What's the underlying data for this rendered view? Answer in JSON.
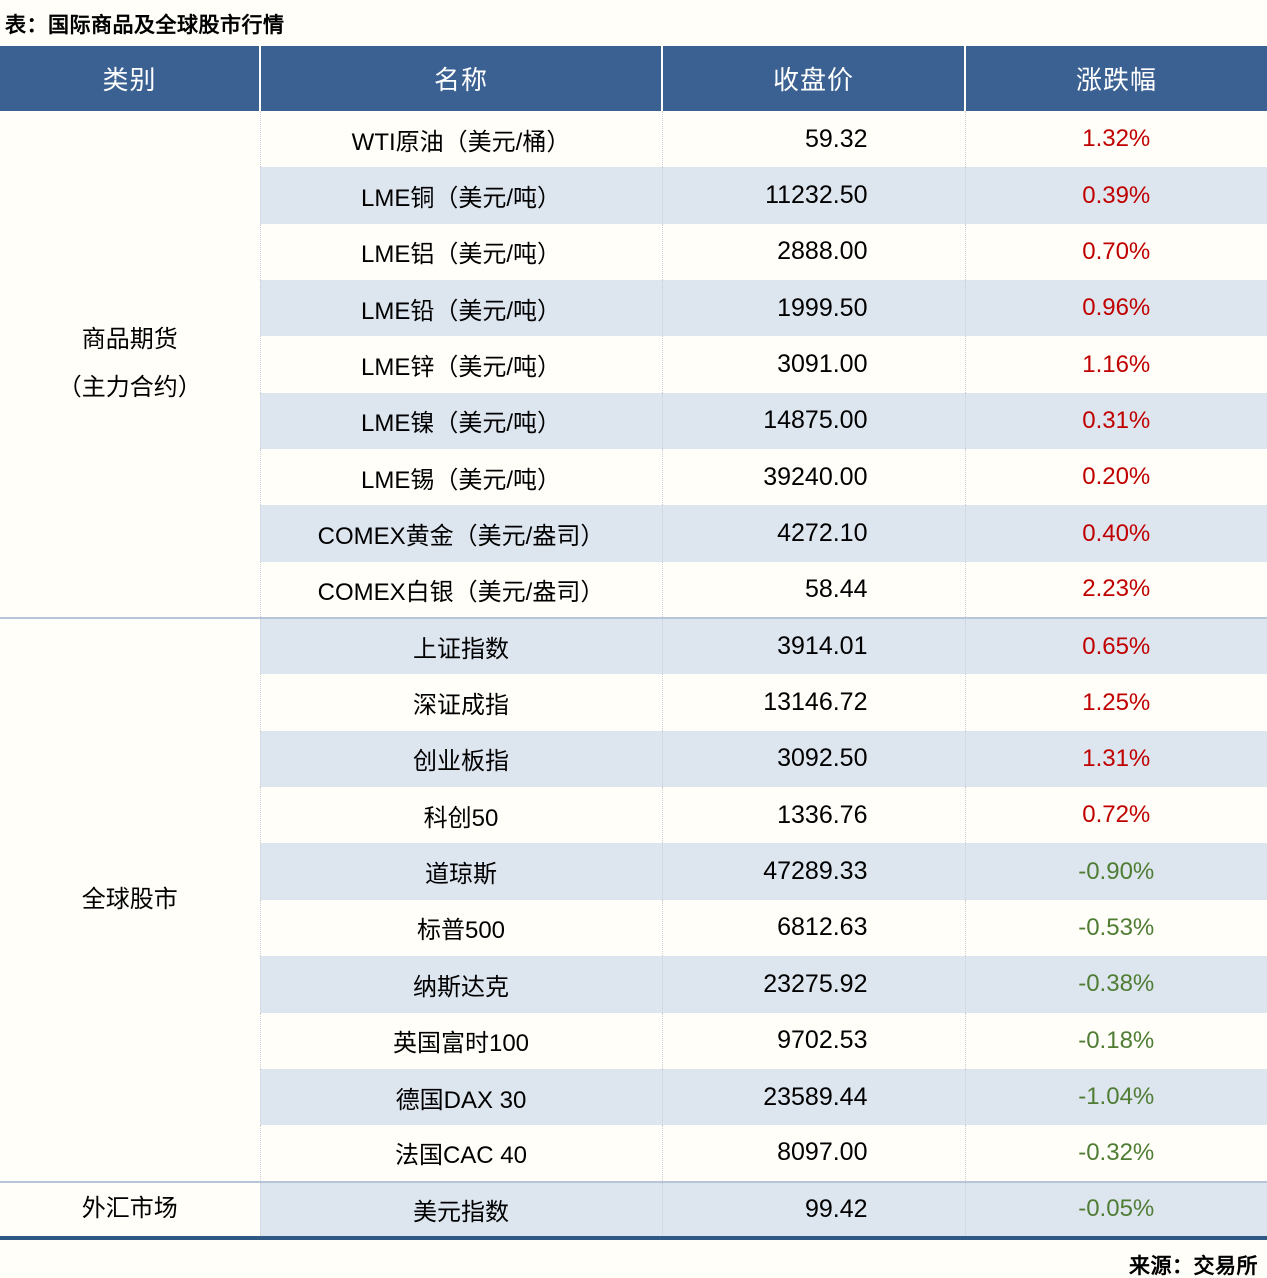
{
  "title": "表：国际商品及全球股市行情",
  "source": "来源：交易所",
  "colors": {
    "up": "#c00000",
    "down": "#4f7d34",
    "header_bg": "#3a6191",
    "band_row_bg": "#dde5ef",
    "plain_row_bg": "#fffef8",
    "bottom_rule": "#2e5984"
  },
  "table": {
    "headers": [
      "类别",
      "名称",
      "收盘价",
      "涨跌幅"
    ],
    "sections": [
      {
        "category_lines": [
          "商品期货",
          "（主力合约）"
        ],
        "rows": [
          {
            "name": "WTI原油（美元/桶）",
            "close": "59.32",
            "change": "1.32%",
            "direction": "up"
          },
          {
            "name": "LME铜（美元/吨）",
            "close": "11232.50",
            "change": "0.39%",
            "direction": "up"
          },
          {
            "name": "LME铝（美元/吨）",
            "close": "2888.00",
            "change": "0.70%",
            "direction": "up"
          },
          {
            "name": "LME铅（美元/吨）",
            "close": "1999.50",
            "change": "0.96%",
            "direction": "up"
          },
          {
            "name": "LME锌（美元/吨）",
            "close": "3091.00",
            "change": "1.16%",
            "direction": "up"
          },
          {
            "name": "LME镍（美元/吨）",
            "close": "14875.00",
            "change": "0.31%",
            "direction": "up"
          },
          {
            "name": "LME锡（美元/吨）",
            "close": "39240.00",
            "change": "0.20%",
            "direction": "up"
          },
          {
            "name": "COMEX黄金（美元/盎司）",
            "close": "4272.10",
            "change": "0.40%",
            "direction": "up"
          },
          {
            "name": "COMEX白银（美元/盎司）",
            "close": "58.44",
            "change": "2.23%",
            "direction": "up"
          }
        ]
      },
      {
        "category_lines": [
          "全球股市"
        ],
        "rows": [
          {
            "name": "上证指数",
            "close": "3914.01",
            "change": "0.65%",
            "direction": "up"
          },
          {
            "name": "深证成指",
            "close": "13146.72",
            "change": "1.25%",
            "direction": "up"
          },
          {
            "name": "创业板指",
            "close": "3092.50",
            "change": "1.31%",
            "direction": "up"
          },
          {
            "name": "科创50",
            "close": "1336.76",
            "change": "0.72%",
            "direction": "up"
          },
          {
            "name": "道琼斯",
            "close": "47289.33",
            "change": "-0.90%",
            "direction": "down"
          },
          {
            "name": "标普500",
            "close": "6812.63",
            "change": "-0.53%",
            "direction": "down"
          },
          {
            "name": "纳斯达克",
            "close": "23275.92",
            "change": "-0.38%",
            "direction": "down"
          },
          {
            "name": "英国富时100",
            "close": "9702.53",
            "change": "-0.18%",
            "direction": "down"
          },
          {
            "name": "德国DAX 30",
            "close": "23589.44",
            "change": "-1.04%",
            "direction": "down"
          },
          {
            "name": "法国CAC 40",
            "close": "8097.00",
            "change": "-0.32%",
            "direction": "down"
          }
        ]
      },
      {
        "category_lines": [
          "外汇市场"
        ],
        "rows": [
          {
            "name": "美元指数",
            "close": "99.42",
            "change": "-0.05%",
            "direction": "down"
          }
        ]
      }
    ]
  }
}
